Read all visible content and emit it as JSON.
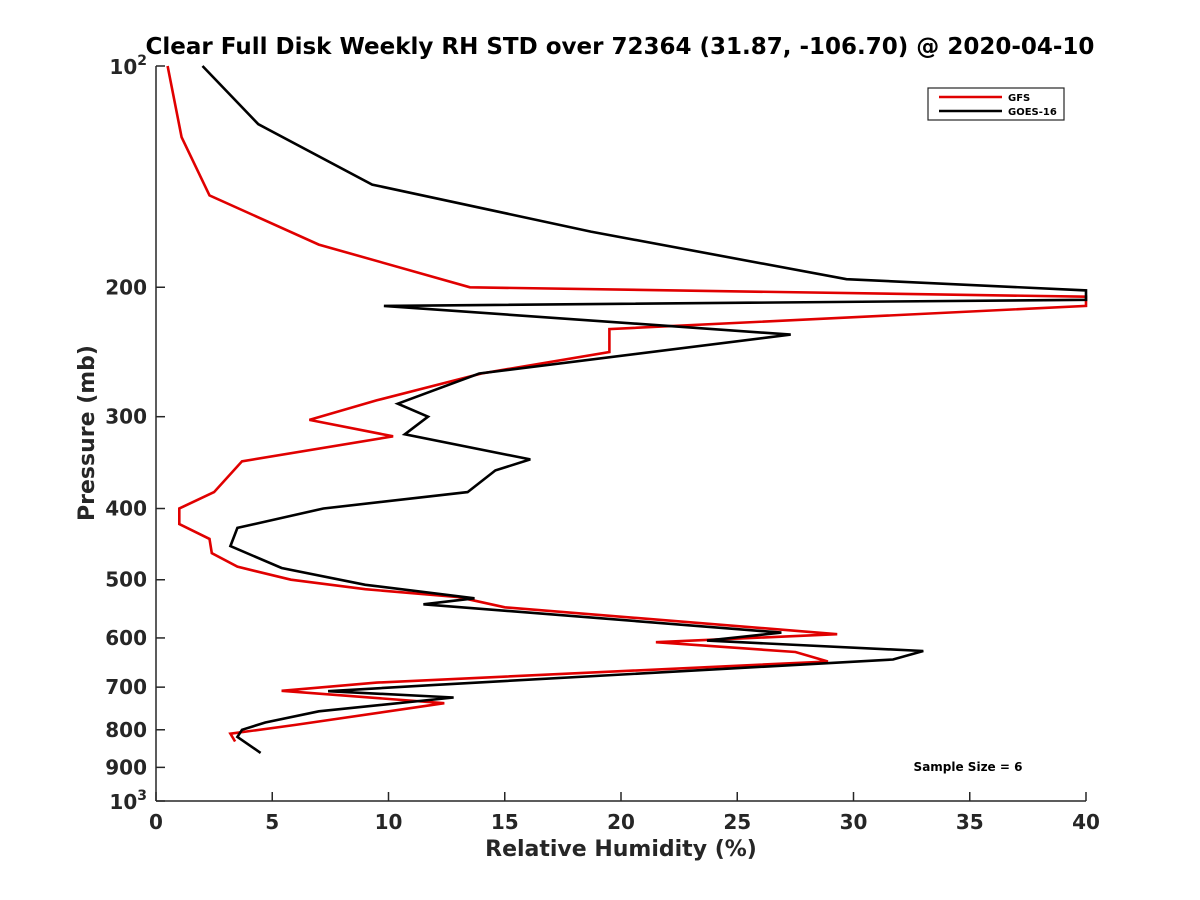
{
  "chart_data": {
    "type": "line",
    "title": "Clear Full Disk Weekly RH STD over 72364 (31.87, -106.70) @ 2020-04-10",
    "xlabel": "Relative Humidity (%)",
    "ylabel": "Pressure (mb)",
    "xlim": [
      0,
      40
    ],
    "ylim": [
      100,
      1000
    ],
    "y_scale": "log",
    "y_reversed": true,
    "grid": false,
    "legend_position": "top-right",
    "x_ticks": [
      "0",
      "5",
      "10",
      "15",
      "20",
      "25",
      "30",
      "35",
      "40"
    ],
    "y_ticks": [
      {
        "value": 100,
        "base": "10",
        "exp": "2"
      },
      {
        "value": 200,
        "label": "200"
      },
      {
        "value": 300,
        "label": "300"
      },
      {
        "value": 400,
        "label": "400"
      },
      {
        "value": 500,
        "label": "500"
      },
      {
        "value": 600,
        "label": "600"
      },
      {
        "value": 700,
        "label": "700"
      },
      {
        "value": 800,
        "label": "800"
      },
      {
        "value": 900,
        "label": "900"
      },
      {
        "value": 1000,
        "base": "10",
        "exp": "3"
      }
    ],
    "annotation": "Sample Size = 6",
    "series": [
      {
        "name": "GFS",
        "color": "#e00000",
        "points": [
          [
            0.5,
            100
          ],
          [
            1.1,
            125
          ],
          [
            2.3,
            150
          ],
          [
            7.0,
            175
          ],
          [
            13.5,
            200
          ],
          [
            40,
            206
          ],
          [
            40,
            212
          ],
          [
            19.5,
            228
          ],
          [
            19.5,
            245
          ],
          [
            14.0,
            262
          ],
          [
            9.5,
            285
          ],
          [
            6.6,
            303
          ],
          [
            10.2,
            319
          ],
          [
            3.7,
            345
          ],
          [
            2.5,
            380
          ],
          [
            1.0,
            400
          ],
          [
            1.0,
            420
          ],
          [
            2.3,
            440
          ],
          [
            2.4,
            460
          ],
          [
            3.5,
            480
          ],
          [
            5.8,
            500
          ],
          [
            9.0,
            515
          ],
          [
            13.0,
            528
          ],
          [
            15.0,
            545
          ],
          [
            29.3,
            593
          ],
          [
            21.5,
            608
          ],
          [
            27.5,
            627
          ],
          [
            28.9,
            646
          ],
          [
            9.5,
            690
          ],
          [
            5.4,
            708
          ],
          [
            12.4,
            736
          ],
          [
            6.0,
            788
          ],
          [
            3.2,
            810
          ],
          [
            3.4,
            830
          ]
        ]
      },
      {
        "name": "GOES-16",
        "color": "#000000",
        "points": [
          [
            2.0,
            100
          ],
          [
            4.4,
            120
          ],
          [
            9.3,
            145
          ],
          [
            18.7,
            168
          ],
          [
            29.7,
            195
          ],
          [
            40,
            202
          ],
          [
            40,
            208
          ],
          [
            9.8,
            212
          ],
          [
            27.3,
            232
          ],
          [
            13.9,
            262
          ],
          [
            10.4,
            288
          ],
          [
            11.7,
            300
          ],
          [
            10.7,
            317
          ],
          [
            16.1,
            343
          ],
          [
            14.6,
            355
          ],
          [
            13.4,
            380
          ],
          [
            7.2,
            400
          ],
          [
            3.5,
            425
          ],
          [
            3.2,
            450
          ],
          [
            5.4,
            482
          ],
          [
            9.0,
            508
          ],
          [
            13.7,
            530
          ],
          [
            11.5,
            540
          ],
          [
            26.9,
            590
          ],
          [
            23.7,
            605
          ],
          [
            33.0,
            625
          ],
          [
            31.7,
            642
          ],
          [
            12.0,
            695
          ],
          [
            7.4,
            709
          ],
          [
            12.8,
            723
          ],
          [
            7.0,
            755
          ],
          [
            4.7,
            782
          ],
          [
            3.7,
            800
          ],
          [
            3.5,
            818
          ],
          [
            4.5,
            860
          ]
        ]
      }
    ]
  }
}
